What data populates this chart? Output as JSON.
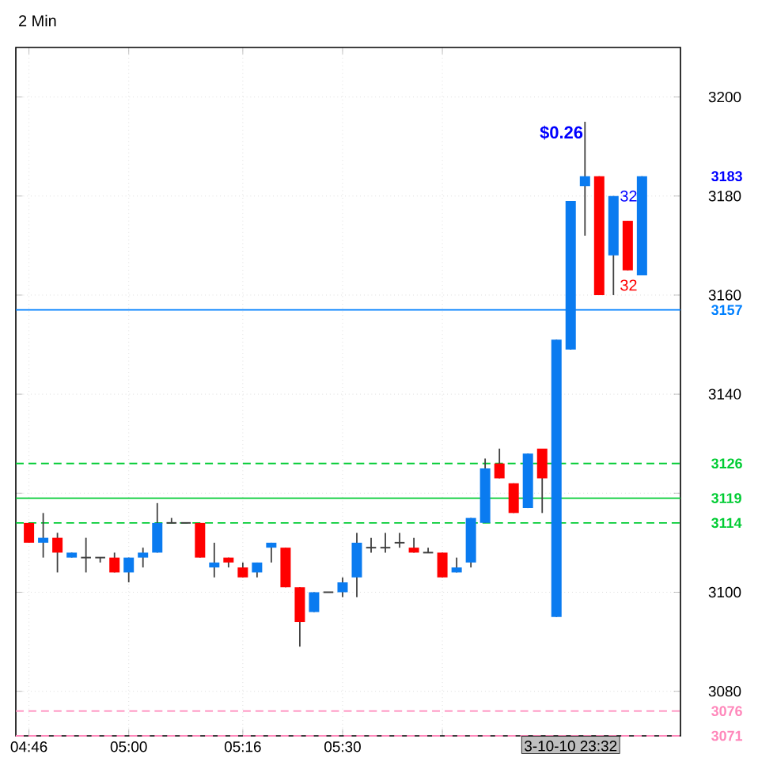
{
  "chart_data": {
    "type": "candlestick",
    "title": "2 Min",
    "x": [
      4.7667,
      4.8,
      4.8333,
      4.8667,
      4.9,
      4.9333,
      4.9667,
      5.0,
      5.0333,
      5.0667,
      5.1,
      5.1333,
      5.1667,
      5.2,
      5.2333,
      5.2667,
      5.3,
      5.3333,
      5.3667,
      5.4,
      5.4333,
      5.4667,
      5.5,
      5.5333,
      5.5667,
      5.6,
      5.6333,
      5.6667,
      5.7,
      5.7333,
      5.7667,
      5.8,
      5.8333,
      5.8667,
      5.9,
      5.9333,
      5.9667,
      6.0,
      6.0333,
      6.0667,
      6.1,
      6.1333,
      6.1667,
      6.2
    ],
    "xlim": [
      4.736,
      6.29
    ],
    "xticks": [
      {
        "value": 4.7667,
        "label": "04:46"
      },
      {
        "value": 5.0,
        "label": "05:00"
      },
      {
        "value": 5.2667,
        "label": "05:16"
      },
      {
        "value": 5.5,
        "label": "05:30"
      },
      {
        "value": 5.7333,
        "label": null
      }
    ],
    "ohlc": [
      [
        3114,
        3114,
        3110,
        3110
      ],
      [
        3110,
        3116,
        3107,
        3111
      ],
      [
        3111,
        3112,
        3104,
        3108
      ],
      [
        3107,
        3108,
        3107,
        3108
      ],
      [
        3107,
        3111,
        3104,
        3107
      ],
      [
        3107,
        3107,
        3106,
        3107
      ],
      [
        3107,
        3108,
        3104,
        3104
      ],
      [
        3104,
        3107,
        3102,
        3107
      ],
      [
        3107,
        3109,
        3105,
        3108
      ],
      [
        3108,
        3118,
        3108,
        3114
      ],
      [
        3114,
        3115,
        3114,
        3114
      ],
      [
        3114,
        3114,
        3114,
        3114
      ],
      [
        3114,
        3114,
        3107,
        3107
      ],
      [
        3105,
        3110,
        3103,
        3106
      ],
      [
        3107,
        3107,
        3105,
        3106
      ],
      [
        3105,
        3106,
        3103,
        3103
      ],
      [
        3104,
        3106,
        3103,
        3106
      ],
      [
        3109,
        3110,
        3106,
        3110
      ],
      [
        3109,
        3109,
        3101,
        3101
      ],
      [
        3101,
        3101,
        3089,
        3094
      ],
      [
        3096,
        3100,
        3096,
        3100
      ],
      [
        3100,
        3100,
        3100,
        3100
      ],
      [
        3100,
        3103,
        3099,
        3102
      ],
      [
        3103,
        3112,
        3099,
        3110
      ],
      [
        3109,
        3111,
        3108,
        3109
      ],
      [
        3109,
        3112,
        3108,
        3109
      ],
      [
        3110,
        3112,
        3109,
        3110
      ],
      [
        3109,
        3111,
        3108,
        3108
      ],
      [
        3108,
        3109,
        3108,
        3108
      ],
      [
        3108,
        3108,
        3103,
        3103
      ],
      [
        3104,
        3107,
        3104,
        3105
      ],
      [
        3106,
        3115,
        3105,
        3115
      ],
      [
        3114,
        3127,
        3114,
        3125
      ],
      [
        3126,
        3129,
        3123,
        3123
      ],
      [
        3122,
        3122,
        3116,
        3116
      ],
      [
        3117,
        3128,
        3117,
        3128
      ],
      [
        3129,
        3129,
        3116,
        3123
      ],
      [
        3095,
        3151,
        3095,
        3151
      ],
      [
        3149,
        3179,
        3149,
        3179
      ],
      [
        3182,
        3195,
        3172,
        3184
      ],
      [
        3184,
        3184,
        3160,
        3160
      ],
      [
        3168,
        3180,
        3160,
        3180
      ],
      [
        3175,
        3175,
        3165,
        3165
      ],
      [
        3164,
        3184,
        3164,
        3184
      ]
    ],
    "colors": [
      "#ff0000",
      "#0a7bf0",
      "#ff0000",
      "#0a7bf0",
      "#333333",
      "#333333",
      "#ff0000",
      "#0a7bf0",
      "#0a7bf0",
      "#0a7bf0",
      "#333333",
      "#333333",
      "#ff0000",
      "#0a7bf0",
      "#ff0000",
      "#ff0000",
      "#0a7bf0",
      "#0a7bf0",
      "#ff0000",
      "#ff0000",
      "#0a7bf0",
      "#333333",
      "#0a7bf0",
      "#0a7bf0",
      "#333333",
      "#333333",
      "#333333",
      "#ff0000",
      "#333333",
      "#ff0000",
      "#0a7bf0",
      "#0a7bf0",
      "#0a7bf0",
      "#ff0000",
      "#ff0000",
      "#0a7bf0",
      "#ff0000",
      "#0a7bf0",
      "#0a7bf0",
      "#0a7bf0",
      "#ff0000",
      "#0a7bf0",
      "#ff0000",
      "#0a7bf0"
    ],
    "ylim": [
      3071,
      3210
    ],
    "yticks": [
      3080,
      3100,
      {
        "value": 3120,
        "label": null
      },
      3140,
      3160,
      3180,
      3200
    ],
    "grid": true,
    "ref_lines": [
      {
        "axis": "y",
        "value": 3157,
        "label": "3157",
        "color": "#0080ff",
        "line_style": "solid"
      },
      {
        "axis": "y",
        "value": 3126,
        "label": "3126",
        "color": "#00cc33",
        "line_style": "dashed"
      },
      {
        "axis": "y",
        "value": 3119,
        "label": "3119",
        "color": "#00cc33",
        "line_style": "solid"
      },
      {
        "axis": "y",
        "value": 3114,
        "label": "3114",
        "color": "#00cc33",
        "line_style": "dashed"
      },
      {
        "axis": "y",
        "value": 3076,
        "label": "3076",
        "color": "#ff88bb",
        "line_style": "dashed"
      },
      {
        "axis": "y",
        "value": 3071,
        "label": "3071",
        "color": "#ff88bb",
        "line_style": "dashed"
      }
    ],
    "annotations": [
      "3183",
      "$0.26",
      "32",
      "32",
      "3-10-10 23:32"
    ]
  }
}
